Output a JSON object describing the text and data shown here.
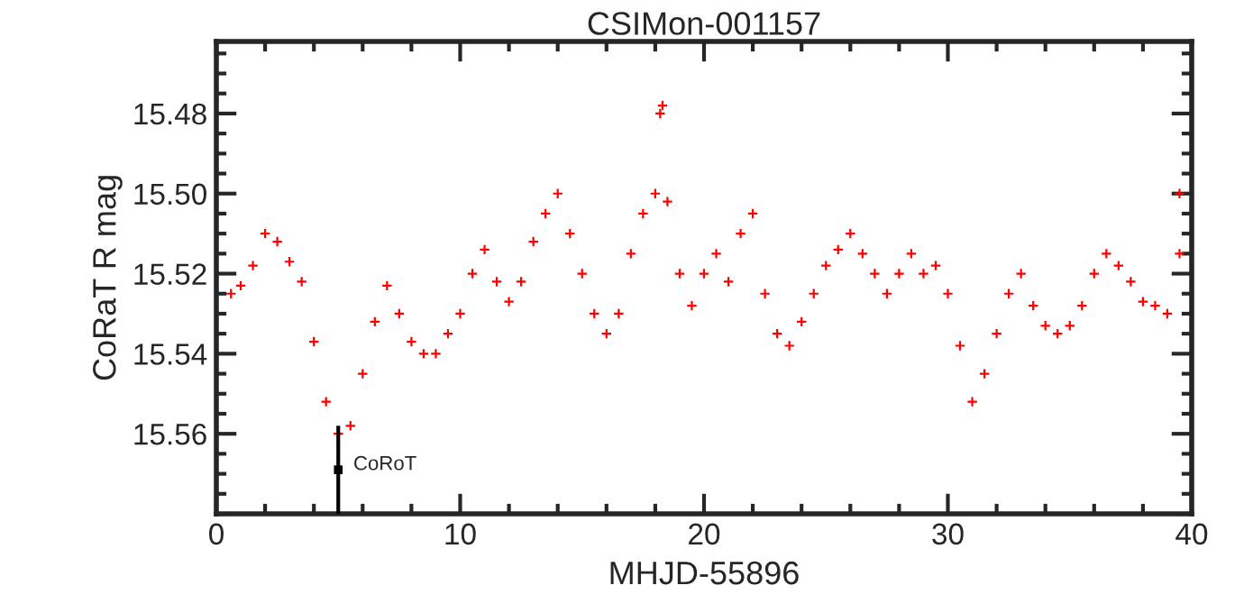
{
  "chart_data": {
    "type": "scatter",
    "title": "CSIMon-001157",
    "xlabel": "MHJD-55896",
    "ylabel": "CoRaT R mag",
    "xlim": [
      0,
      40
    ],
    "xticks": [
      0,
      10,
      20,
      30,
      40
    ],
    "ylim": [
      15.58,
      15.462
    ],
    "yticks": [
      15.48,
      {
        "value": 15.5,
        "label": "15.50"
      },
      15.52,
      15.54,
      15.56
    ],
    "marker": "cross",
    "grid": false,
    "legend": false,
    "series": [
      {
        "color": "#ff0000",
        "x": [
          0.6,
          1,
          1.5,
          2,
          2.5,
          3,
          3.5,
          4,
          4.5,
          5,
          5.5,
          6,
          6.5,
          7,
          7.5,
          8,
          8.5,
          9,
          9.5,
          10,
          10.5,
          11,
          11.5,
          12,
          12.5,
          13,
          13.5,
          14,
          14.5,
          15,
          15.5,
          16,
          16.5,
          17,
          17.5,
          18,
          18.2,
          18.3,
          18.5,
          19,
          19.5,
          20,
          20.5,
          21,
          21.5,
          22,
          22.5,
          23,
          23.5,
          24,
          24.5,
          25,
          25.5,
          26,
          26.5,
          27,
          27.5,
          28,
          28.5,
          29,
          29.5,
          30,
          30.5,
          31,
          31.5,
          32,
          32.5,
          33,
          33.5,
          34,
          34.5,
          35,
          35.5,
          36,
          36.5,
          37,
          37.5,
          38,
          38.5,
          39,
          39.5,
          39.5
        ],
        "values": [
          15.525,
          15.523,
          15.518,
          15.51,
          15.512,
          15.517,
          15.522,
          15.537,
          15.552,
          15.56,
          15.558,
          15.545,
          15.532,
          15.523,
          15.53,
          15.537,
          15.54,
          15.54,
          15.535,
          15.53,
          15.52,
          15.514,
          15.522,
          15.527,
          15.522,
          15.512,
          15.505,
          15.5,
          15.51,
          15.52,
          15.53,
          15.535,
          15.53,
          15.515,
          15.505,
          15.5,
          15.48,
          15.478,
          15.502,
          15.52,
          15.528,
          15.52,
          15.515,
          15.522,
          15.51,
          15.505,
          15.525,
          15.535,
          15.538,
          15.532,
          15.525,
          15.518,
          15.514,
          15.51,
          15.515,
          15.52,
          15.525,
          15.52,
          15.515,
          15.52,
          15.518,
          15.525,
          15.538,
          15.552,
          15.545,
          15.535,
          15.525,
          15.52,
          15.528,
          15.533,
          15.535,
          15.533,
          15.528,
          15.52,
          15.515,
          15.518,
          15.522,
          15.527,
          15.528,
          15.53,
          15.515,
          15.5
        ]
      },
      {
        "name": "CoRoT",
        "color": "#000000",
        "marker": "square",
        "x": [
          5
        ],
        "values": [
          15.569
        ],
        "errors": [
          0.011
        ]
      }
    ]
  }
}
